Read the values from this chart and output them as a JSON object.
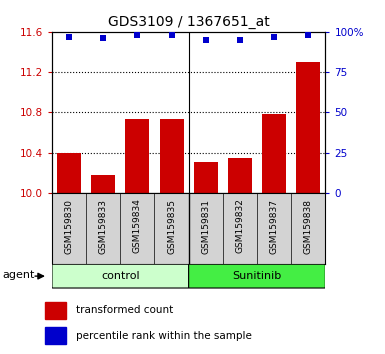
{
  "title": "GDS3109 / 1367651_at",
  "samples": [
    "GSM159830",
    "GSM159833",
    "GSM159834",
    "GSM159835",
    "GSM159831",
    "GSM159832",
    "GSM159837",
    "GSM159838"
  ],
  "bar_values": [
    10.4,
    10.18,
    10.73,
    10.73,
    10.31,
    10.35,
    10.78,
    11.3
  ],
  "percentile_values": [
    97,
    96,
    98,
    98,
    95,
    95,
    97,
    98
  ],
  "ylim_left": [
    10.0,
    11.6
  ],
  "ylim_right": [
    0,
    100
  ],
  "yticks_left": [
    10.0,
    10.4,
    10.8,
    11.2,
    11.6
  ],
  "yticks_right": [
    0,
    25,
    50,
    75,
    100
  ],
  "bar_color": "#cc0000",
  "dot_color": "#0000cc",
  "groups": [
    {
      "label": "control",
      "indices": [
        0,
        1,
        2,
        3
      ],
      "color": "#ccffcc"
    },
    {
      "label": "Sunitinib",
      "indices": [
        4,
        5,
        6,
        7
      ],
      "color": "#44ee44"
    }
  ],
  "group_label": "agent",
  "legend_bar_label": "transformed count",
  "legend_dot_label": "percentile rank within the sample",
  "background_plot": "#ffffff",
  "background_samples": "#d3d3d3"
}
